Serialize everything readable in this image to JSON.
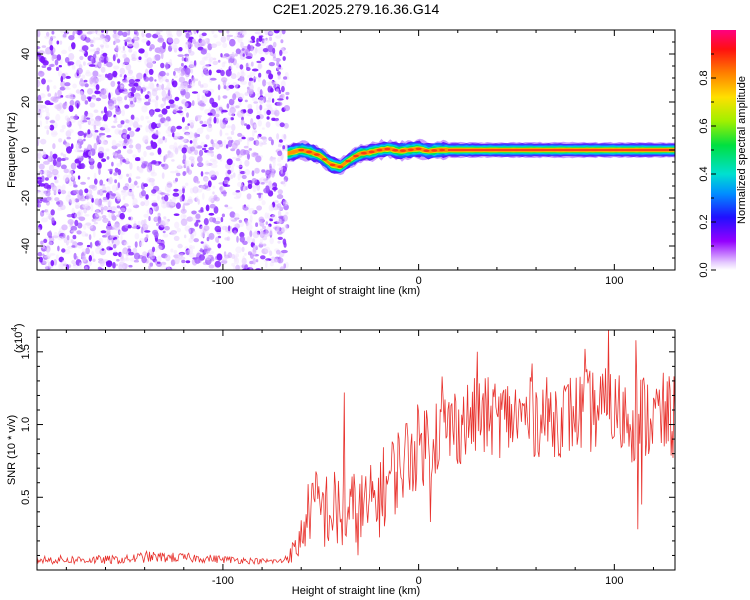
{
  "chart_data": [
    {
      "type": "heatmap",
      "title": "C2E1.2025.279.16.36.G14",
      "xlabel": "Height of straight line (km)",
      "ylabel": "Frequency (Hz)",
      "xlim": [
        -195,
        131
      ],
      "ylim": [
        -50,
        50
      ],
      "x_ticks": [
        -100,
        0,
        100
      ],
      "x_tick_labels": [
        "-100",
        "0",
        "100"
      ],
      "y_ticks": [
        -40,
        -20,
        0,
        20,
        40
      ],
      "y_tick_labels": [
        "-40",
        "-20",
        "0",
        "20",
        "40"
      ],
      "noise_region_x": [
        -195,
        -67
      ],
      "signal_track": [
        {
          "x": -67,
          "y": -1.5
        },
        {
          "x": -60,
          "y": 0
        },
        {
          "x": -55,
          "y": -1
        },
        {
          "x": -50,
          "y": -2.5
        },
        {
          "x": -45,
          "y": -6
        },
        {
          "x": -40,
          "y": -7
        },
        {
          "x": -35,
          "y": -4
        },
        {
          "x": -30,
          "y": -1.5
        },
        {
          "x": -25,
          "y": -1
        },
        {
          "x": -20,
          "y": 0
        },
        {
          "x": -15,
          "y": 0.5
        },
        {
          "x": -10,
          "y": -0.5
        },
        {
          "x": -5,
          "y": 0
        },
        {
          "x": 0,
          "y": 0.5
        },
        {
          "x": 5,
          "y": -0.5
        },
        {
          "x": 10,
          "y": 0
        },
        {
          "x": 15,
          "y": 0
        },
        {
          "x": 131,
          "y": 0
        }
      ],
      "colorbar": {
        "label": "Normalized spectral amplitude",
        "range": [
          0,
          1
        ],
        "ticks": [
          0.0,
          0.2,
          0.4,
          0.6,
          0.8
        ],
        "tick_labels": [
          "0.0",
          "0.2",
          "0.4",
          "0.6",
          "0.8"
        ]
      }
    },
    {
      "type": "line",
      "xlabel": "Height of straight line (km)",
      "ylabel": "SNR (10 * v/v)",
      "exponent_label": "(x10",
      "exponent": "4",
      "exponent_close": ")",
      "xlim": [
        -195,
        131
      ],
      "ylim": [
        0,
        1.65
      ],
      "x_ticks": [
        -100,
        0,
        100
      ],
      "x_tick_labels": [
        "-100",
        "0",
        "100"
      ],
      "y_ticks": [
        0.5,
        1.0,
        1.5
      ],
      "y_tick_labels": [
        "0.5",
        "1.0",
        "1.5"
      ],
      "series": [
        {
          "name": "SNR",
          "color": "#e8322d",
          "envelope": [
            {
              "x": -195,
              "mean": 0.07,
              "spread": 0.03
            },
            {
              "x": -150,
              "mean": 0.07,
              "spread": 0.03
            },
            {
              "x": -140,
              "mean": 0.09,
              "spread": 0.04
            },
            {
              "x": -110,
              "mean": 0.08,
              "spread": 0.03
            },
            {
              "x": -80,
              "mean": 0.06,
              "spread": 0.02
            },
            {
              "x": -70,
              "mean": 0.06,
              "spread": 0.02
            },
            {
              "x": -62,
              "mean": 0.15,
              "spread": 0.1
            },
            {
              "x": -55,
              "mean": 0.45,
              "spread": 0.25
            },
            {
              "x": -45,
              "mean": 0.4,
              "spread": 0.3
            },
            {
              "x": -35,
              "mean": 0.38,
              "spread": 0.3
            },
            {
              "x": -25,
              "mean": 0.42,
              "spread": 0.3
            },
            {
              "x": -15,
              "mean": 0.62,
              "spread": 0.3
            },
            {
              "x": -5,
              "mean": 0.8,
              "spread": 0.3
            },
            {
              "x": 10,
              "mean": 0.95,
              "spread": 0.3
            },
            {
              "x": 30,
              "mean": 1.05,
              "spread": 0.28
            },
            {
              "x": 50,
              "mean": 1.05,
              "spread": 0.28
            },
            {
              "x": 70,
              "mean": 1.05,
              "spread": 0.28
            },
            {
              "x": 90,
              "mean": 1.1,
              "spread": 0.3
            },
            {
              "x": 110,
              "mean": 1.05,
              "spread": 0.32
            },
            {
              "x": 131,
              "mean": 1.05,
              "spread": 0.3
            }
          ],
          "spikes": [
            {
              "x": -38,
              "y": 1.22
            },
            {
              "x": 12,
              "y": 1.33
            },
            {
              "x": 30,
              "y": 1.5
            },
            {
              "x": 58,
              "y": 1.42
            },
            {
              "x": 85,
              "y": 1.52
            },
            {
              "x": 97,
              "y": 1.67
            },
            {
              "x": 111,
              "y": 1.58
            },
            {
              "x": 112,
              "y": 0.28
            },
            {
              "x": 114,
              "y": 0.45
            },
            {
              "x": 6,
              "y": 0.33
            }
          ]
        }
      ]
    }
  ]
}
